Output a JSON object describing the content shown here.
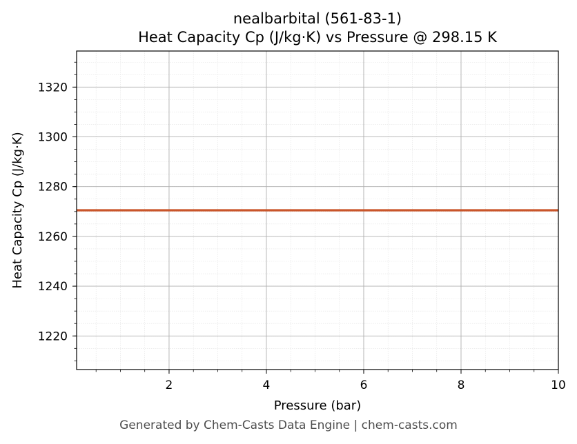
{
  "chart_data": {
    "type": "line",
    "title_line1": "nealbarbital (561-83-1)",
    "title_line2": "Heat Capacity Cp (J/kg·K) vs Pressure @ 298.15 K",
    "xlabel": "Pressure (bar)",
    "ylabel": "Heat Capacity Cp (J/kg·K)",
    "xlim": [
      0.1,
      10
    ],
    "ylim": [
      1206.5,
      1334.5
    ],
    "xticks": [
      2,
      4,
      6,
      8,
      10
    ],
    "yticks": [
      1220,
      1240,
      1260,
      1280,
      1300,
      1320
    ],
    "grid": true,
    "minor_grid": true,
    "series": [
      {
        "color": "#c9552a",
        "x": [
          0.1,
          10
        ],
        "y": [
          1270.5,
          1270.5
        ]
      }
    ]
  },
  "footer": "Generated by Chem-Casts Data Engine | chem-casts.com"
}
